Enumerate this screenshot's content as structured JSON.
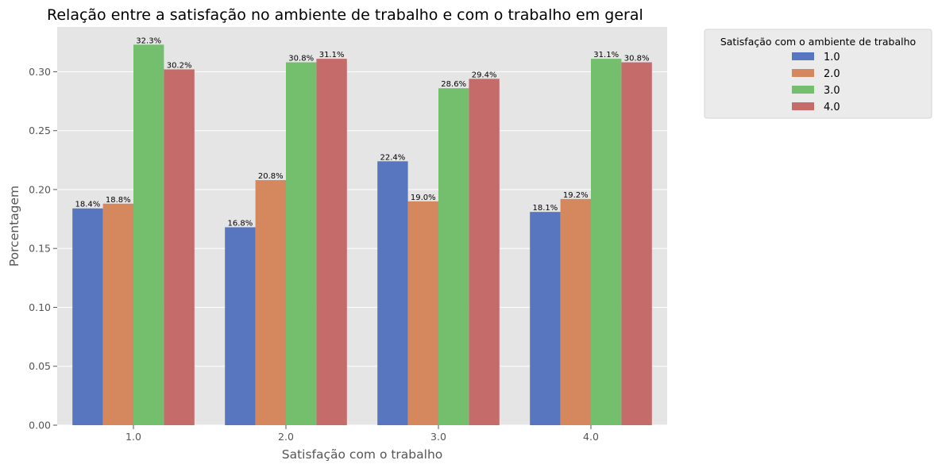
{
  "chart_data": {
    "type": "bar",
    "title": "Relação entre a satisfação no ambiente de trabalho e com o trabalho em geral",
    "xlabel": "Satisfação com o trabalho",
    "ylabel": "Porcentagem",
    "categories": [
      "1.0",
      "2.0",
      "3.0",
      "4.0"
    ],
    "ylim": [
      0,
      0.338
    ],
    "yticks": [
      "0.00",
      "0.05",
      "0.10",
      "0.15",
      "0.20",
      "0.25",
      "0.30"
    ],
    "grid": true,
    "legend": {
      "title": "Satisfação com o ambiente de trabalho",
      "position": "outside-top-right"
    },
    "series": [
      {
        "name": "1.0",
        "color": "#5875c0",
        "values": [
          0.184,
          0.168,
          0.224,
          0.181
        ],
        "labels": [
          "18.4%",
          "16.8%",
          "22.4%",
          "18.1%"
        ]
      },
      {
        "name": "2.0",
        "color": "#d5885d",
        "values": [
          0.188,
          0.208,
          0.19,
          0.192
        ],
        "labels": [
          "18.8%",
          "20.8%",
          "19.0%",
          "19.2%"
        ]
      },
      {
        "name": "3.0",
        "color": "#73bf6e",
        "values": [
          0.323,
          0.308,
          0.286,
          0.311
        ],
        "labels": [
          "32.3%",
          "30.8%",
          "28.6%",
          "31.1%"
        ]
      },
      {
        "name": "4.0",
        "color": "#c56c6b",
        "values": [
          0.302,
          0.311,
          0.294,
          0.308
        ],
        "labels": [
          "30.2%",
          "31.1%",
          "29.4%",
          "30.8%"
        ]
      }
    ]
  },
  "colors": {
    "plot_background": "#e5e5e5",
    "grid": "#ffffff",
    "legend_background": "#ebebeb"
  }
}
